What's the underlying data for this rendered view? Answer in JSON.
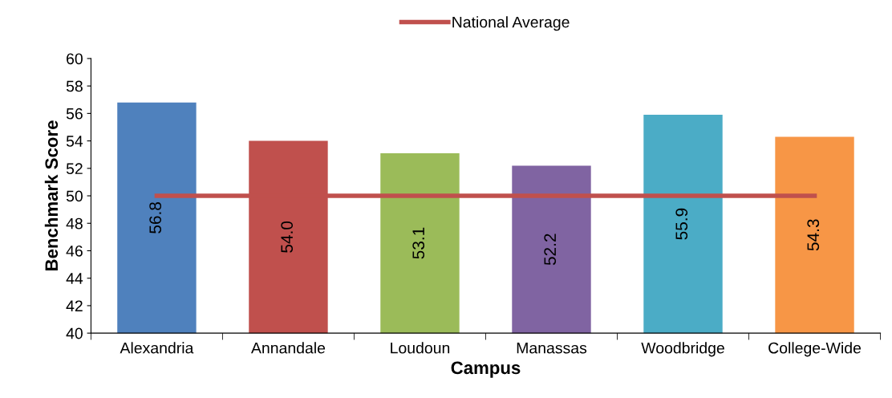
{
  "chart_data": {
    "type": "bar",
    "xlabel": "Campus",
    "ylabel": "Benchmark Score",
    "categories": [
      "Alexandria",
      "Annandale",
      "Loudoun",
      "Manassas",
      "Woodbridge",
      "College-Wide"
    ],
    "series": [
      {
        "values": [
          56.8,
          54.0,
          53.1,
          52.2,
          55.9,
          54.3
        ],
        "colors": [
          "#4f81bd",
          "#c0504d",
          "#9bbb59",
          "#8064a2",
          "#4bacc6",
          "#f79646"
        ],
        "value_labels": [
          "56.8",
          "54.0",
          "53.1",
          "52.2",
          "55.9",
          "54.3"
        ]
      },
      {
        "type": "line",
        "name": "National Average",
        "color": "#c0504d",
        "values": [
          50,
          50,
          50,
          50,
          50,
          50
        ]
      }
    ],
    "ylim": [
      40,
      60
    ],
    "yticks": [
      40,
      42,
      44,
      46,
      48,
      50,
      52,
      54,
      56,
      58,
      60
    ],
    "grid": false,
    "legend": "top",
    "marker": "none",
    "line_style": "solid"
  }
}
